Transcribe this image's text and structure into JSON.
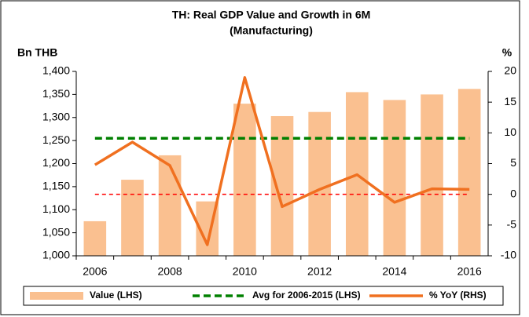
{
  "chart_data": {
    "type": "bar_line",
    "title": "TH: Real GDP Value and Growth in 6M",
    "subtitle": "(Manufacturing)",
    "y_label": "Bn THB",
    "y2_label": "%",
    "categories": [
      "2006",
      null,
      "2008",
      null,
      "2010",
      null,
      "2012",
      null,
      "2014",
      null,
      "2016"
    ],
    "series": [
      {
        "name": "Value (LHS)",
        "type": "bar",
        "color": "#fac090",
        "values": [
          1075,
          1165,
          1218,
          1118,
          1330,
          1303,
          1312,
          1355,
          1338,
          1350,
          1362
        ]
      },
      {
        "name": "Avg for 2006-2015 (LHS)",
        "type": "dashed",
        "color": "#008000",
        "values": [
          1255,
          1255,
          1255,
          1255,
          1255,
          1255,
          1255,
          1255,
          1255,
          1255,
          1255
        ]
      },
      {
        "name": "% YoY (RHS)",
        "type": "line",
        "color": "#f07020",
        "axis": "y2",
        "values": [
          4.8,
          8.5,
          4.7,
          -8.2,
          19,
          -2,
          0.8,
          3.2,
          -1.3,
          0.9,
          0.8
        ]
      }
    ],
    "ylim": [
      1000,
      1400
    ],
    "yticks": [
      {
        "value": 1000,
        "label": "1,000"
      },
      {
        "value": 1050,
        "label": "1,050"
      },
      {
        "value": 1100,
        "label": "1,100"
      },
      {
        "value": 1150,
        "label": "1,150"
      },
      {
        "value": 1200,
        "label": "1,200"
      },
      {
        "value": 1250,
        "label": "1,250"
      },
      {
        "value": 1300,
        "label": "1,300"
      },
      {
        "value": 1350,
        "label": "1,350"
      },
      {
        "value": 1400,
        "label": "1,400"
      }
    ],
    "y2lim": [
      -10,
      20
    ],
    "y2ticks": [
      -10,
      -5,
      0,
      5,
      10,
      15,
      20
    ]
  }
}
